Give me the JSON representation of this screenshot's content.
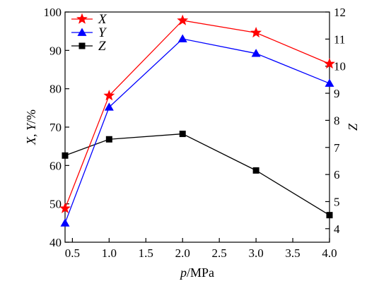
{
  "chart_data": {
    "type": "line",
    "x": [
      0.4,
      1.0,
      2.0,
      3.0,
      4.0
    ],
    "xlabel": "p/MPa",
    "ylabel": "X, Y/%",
    "y2label": "Z",
    "xlim": [
      0.4,
      4.0
    ],
    "ylim": [
      40,
      100
    ],
    "y2lim": [
      3.5,
      12
    ],
    "xticks": [
      "0.5",
      "1.0",
      "1.5",
      "2.0",
      "2.5",
      "3.0",
      "3.5",
      "4.0"
    ],
    "yticks": [
      "40",
      "50",
      "60",
      "70",
      "80",
      "90",
      "100"
    ],
    "y2ticks": [
      "4",
      "5",
      "6",
      "7",
      "8",
      "9",
      "10",
      "11",
      "12"
    ],
    "grid": false,
    "legend_position": "top-left",
    "series": [
      {
        "name": "X",
        "axis": "left",
        "values": [
          48.8,
          78.2,
          97.8,
          94.6,
          86.5
        ],
        "color": "#ff0000",
        "marker": "star"
      },
      {
        "name": "Y",
        "axis": "left",
        "values": [
          45.0,
          75.2,
          93.0,
          89.2,
          81.4
        ],
        "color": "#0000ff",
        "marker": "triangle"
      },
      {
        "name": "Z",
        "axis": "right",
        "values": [
          6.7,
          7.3,
          7.5,
          6.15,
          4.5
        ],
        "color": "#000000",
        "marker": "square"
      }
    ]
  }
}
